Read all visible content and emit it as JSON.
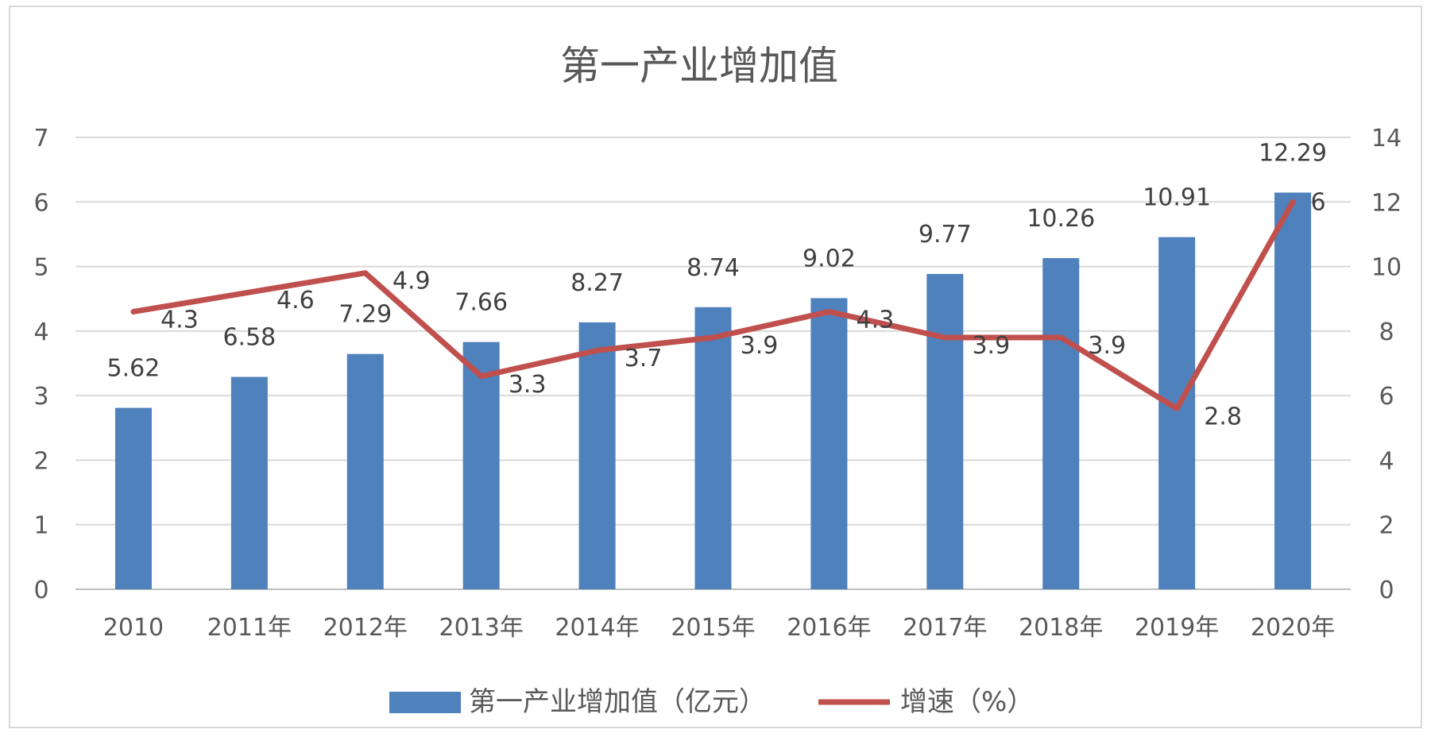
{
  "chart_data": {
    "type": "bar",
    "title": "第一产业增加值",
    "categories": [
      "2010",
      "2011年",
      "2012年",
      "2013年",
      "2014年",
      "2015年",
      "2016年",
      "2017年",
      "2018年",
      "2019年",
      "2020年"
    ],
    "series": [
      {
        "name": "第一产业增加值（亿元）",
        "type": "bar",
        "axis": "right",
        "values": [
          5.62,
          6.58,
          7.29,
          7.66,
          8.27,
          8.74,
          9.02,
          9.77,
          10.26,
          10.91,
          12.29
        ],
        "labels": [
          "5.62",
          "6.58",
          "7.29",
          "7.66",
          "8.27",
          "8.74",
          "9.02",
          "9.77",
          "10.26",
          "10.91",
          "12.29"
        ]
      },
      {
        "name": "增速（%）",
        "type": "line",
        "axis": "left",
        "values": [
          4.3,
          4.6,
          4.9,
          3.3,
          3.7,
          3.9,
          4.3,
          3.9,
          3.9,
          2.8,
          6
        ],
        "labels": [
          "4.3",
          "4.6",
          "4.9",
          "3.3",
          "3.7",
          "3.9",
          "4.3",
          "3.9",
          "3.9",
          "2.8",
          "6"
        ]
      }
    ],
    "y_left": {
      "ticks": [
        "0",
        "1",
        "2",
        "3",
        "4",
        "5",
        "6",
        "7"
      ],
      "ylim": [
        0,
        7
      ]
    },
    "y_right": {
      "ticks": [
        "0",
        "2",
        "4",
        "6",
        "8",
        "10",
        "12",
        "14"
      ],
      "ylim": [
        0,
        14
      ]
    },
    "grid": true,
    "legend_position": "bottom",
    "colors": {
      "bar": "#4f81bd",
      "line": "#c0504d",
      "grid": "#d9d9d9",
      "text": "#595959"
    }
  }
}
